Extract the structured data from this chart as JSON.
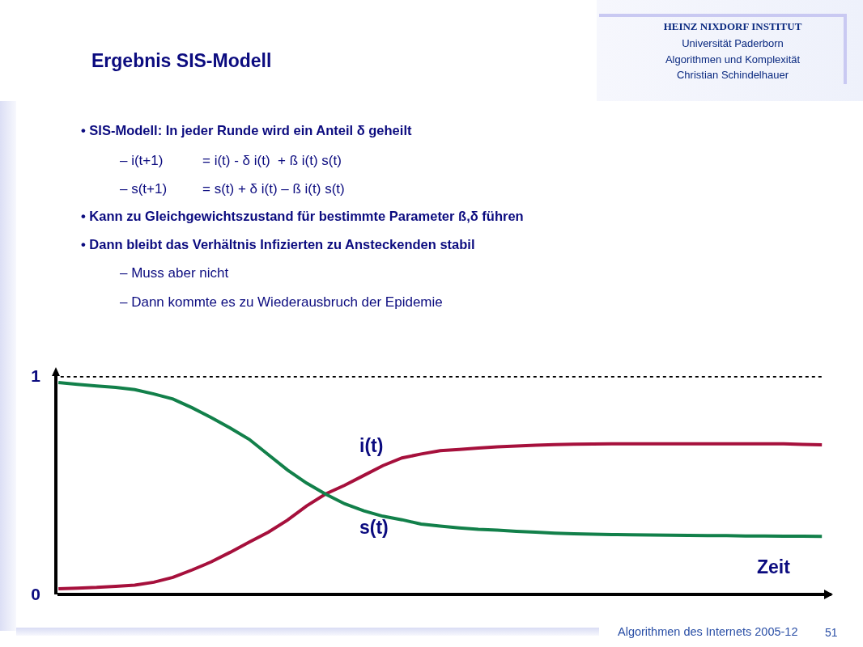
{
  "chart_data": {
    "type": "line",
    "title": "Ergebnis SIS-Modell",
    "xlabel": "Zeit",
    "categories": [
      null,
      null,
      null,
      null,
      null,
      null,
      null,
      null,
      null,
      null,
      null,
      null,
      null,
      null,
      null,
      null,
      null,
      null,
      null,
      null,
      null,
      null,
      null,
      null,
      null,
      null,
      null,
      null,
      null,
      null,
      null,
      null,
      null,
      null,
      null,
      null,
      null,
      null,
      null,
      null,
      null
    ],
    "series": [
      {
        "name": "i(t)",
        "color": "#a6103c",
        "values": [
          0.026,
          0.029,
          0.032,
          0.037,
          0.043,
          0.056,
          0.078,
          0.112,
          0.149,
          0.193,
          0.24,
          0.285,
          0.34,
          0.405,
          0.46,
          0.5,
          0.545,
          0.59,
          0.625,
          0.643,
          0.658,
          0.664,
          0.67,
          0.676,
          0.68,
          0.683,
          0.686,
          0.688,
          0.689,
          0.69,
          0.69,
          0.69,
          0.69,
          0.69,
          0.69,
          0.69,
          0.69,
          0.69,
          0.69,
          0.687,
          0.685
        ]
      },
      {
        "name": "s(t)",
        "color": "#12804a",
        "values": [
          0.97,
          0.962,
          0.955,
          0.948,
          0.938,
          0.918,
          0.895,
          0.855,
          0.81,
          0.762,
          0.71,
          0.64,
          0.57,
          0.51,
          0.459,
          0.415,
          0.383,
          0.358,
          0.342,
          0.322,
          0.313,
          0.305,
          0.298,
          0.294,
          0.289,
          0.285,
          0.281,
          0.278,
          0.276,
          0.274,
          0.273,
          0.272,
          0.271,
          0.27,
          0.269,
          0.269,
          0.268,
          0.268,
          0.267,
          0.267,
          0.266
        ]
      }
    ],
    "ylim": [
      0,
      1
    ],
    "yticks": [
      0,
      1
    ],
    "ref_lines": [
      {
        "axis": "y",
        "value": 1,
        "color": "#000000",
        "line_style": "dotted"
      }
    ],
    "legend": false,
    "marker": "none",
    "line_style": "solid",
    "tick_labels": "y",
    "annotations": [
      "HEINZ NIXDORF INSTITUT",
      "Universität Paderborn",
      "Algorithmen und Komplexität",
      "Christian Schindelhauer",
      "• SIS-Modell: In jeder Runde wird ein Anteil δ geheilt",
      "– i(t+1)\t= i(t) - δ i(t)  + ß i(t) s(t)",
      "– s(t+1)\t= s(t) + δ i(t) – ß i(t) s(t)",
      "• Kann zu Gleichgewichtszustand für bestimmte Parameter ß,δ führen",
      "• Dann bleibt das Verhältnis Infizierten zu Ansteckenden stabil",
      "– Muss aber nicht",
      "– Dann kommte es zu Wiederausbruch der Epidemie",
      "Algorithmen des Internets 2005-12",
      "51"
    ]
  }
}
